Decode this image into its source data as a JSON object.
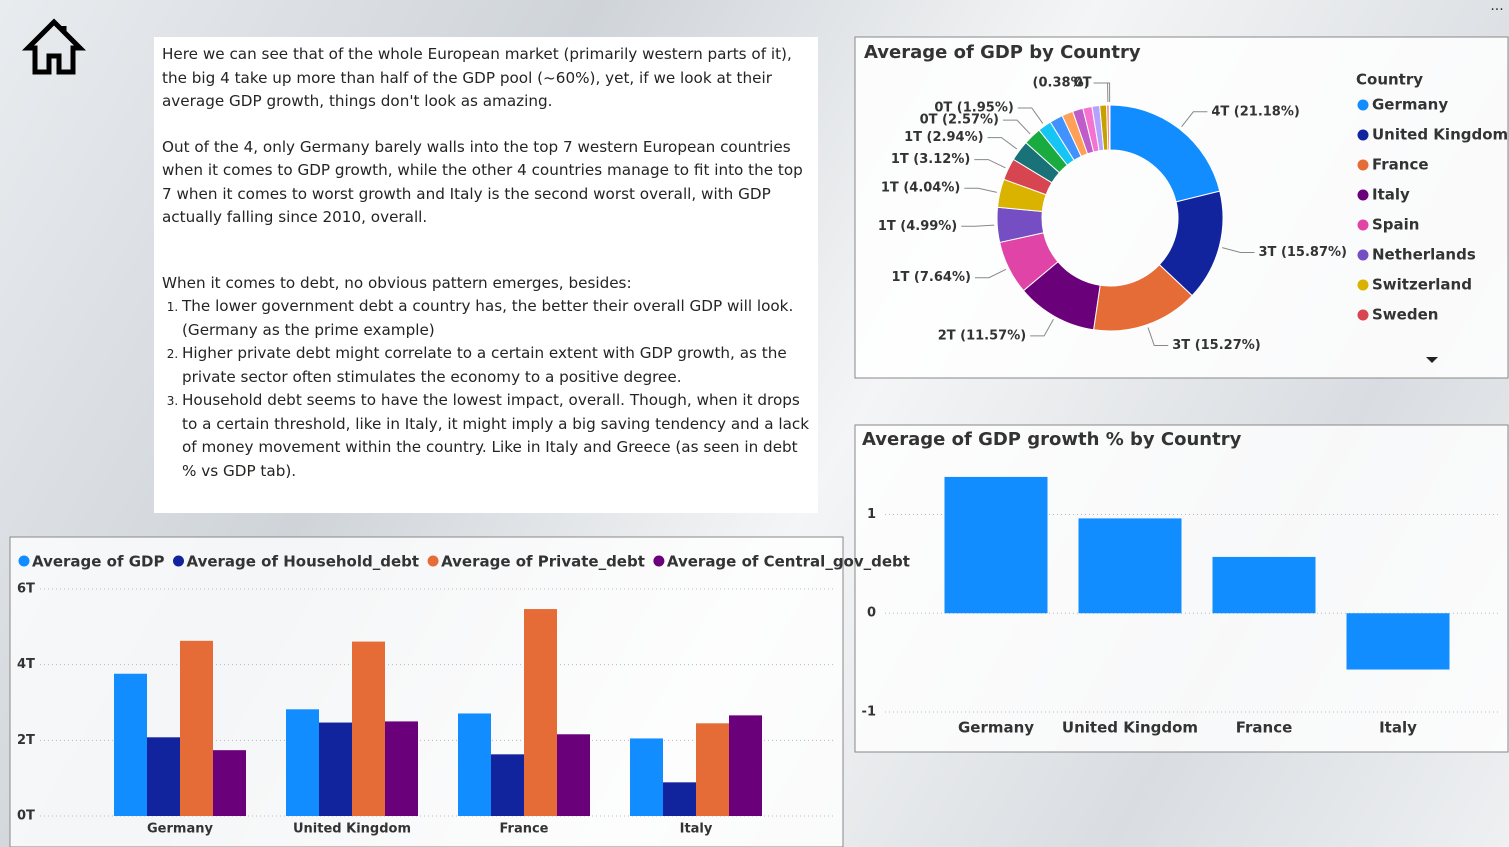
{
  "text_panel": {
    "paragraphs": [
      "Here we can see that of the whole European market (primarily western parts of it), the big 4 take up more than half of the GDP pool (~60%), yet, if we look at their average GDP growth, things don't look as amazing.",
      "Out of the 4, only Germany barely walls into the top 7 western European countries when it comes to GDP growth, while the other 4 countries manage to fit into the top 7 when it comes to worst growth and Italy is the second worst overall, with GDP actually falling since 2010, overall.",
      "When it comes to debt, no obvious pattern emerges, besides:"
    ],
    "list": [
      "The lower government debt a country has, the better their overall GDP will look. (Germany as the prime example)",
      "Higher private debt might correlate to a certain extent with GDP growth, as the private sector often stimulates the economy to a positive degree.",
      "Household debt seems to have the lowest impact, overall. Though, when it drops to a certain threshold, like in Italy, it might imply a big saving tendency and a lack of money movement within the country. Like in Italy and Greece (as seen in debt % vs GDP tab)."
    ]
  },
  "chart_data": [
    {
      "type": "donut",
      "title": "Average of GDP by Country",
      "legend_title": "Country",
      "categories": [
        "Germany",
        "United Kingdom",
        "France",
        "Italy",
        "Spain",
        "Netherlands",
        "Switzerland",
        "Sweden",
        null,
        null,
        null,
        null,
        null,
        null,
        null,
        null,
        null,
        null,
        null
      ],
      "values": [
        21.18,
        15.87,
        15.27,
        11.57,
        7.64,
        4.99,
        4.04,
        3.12,
        2.94,
        2.57,
        1.95,
        1.9,
        1.6,
        1.5,
        1.3,
        1.1,
        0.98,
        0.38,
        0.1
      ],
      "value_labels": [
        "4T (21.18%)",
        "3T (15.87%)",
        "3T (15.27%)",
        "2T (11.57%)",
        "1T (7.64%)",
        "1T (4.99%)",
        "1T (4.04%)",
        "1T (3.12%)",
        "1T (2.94%)",
        "0T (2.57%)",
        "0T (1.95%)",
        null,
        null,
        null,
        null,
        null,
        null,
        "(0.38%)",
        "0T"
      ],
      "colors": [
        "#118DFF",
        "#12239E",
        "#E66C37",
        "#6B007B",
        "#E044A7",
        "#744EC2",
        "#D9B300",
        "#D64550",
        "#197278",
        "#1AAB40",
        "#15C6F4",
        "#4092FF",
        "#FFA058",
        "#BE5DC9",
        "#F472D0",
        "#B5A1FF",
        "#C4A200",
        "#FF8080",
        "#00DBBC"
      ]
    },
    {
      "type": "bar",
      "title": "Average of GDP growth % by Country",
      "categories": [
        "Germany",
        "United Kingdom",
        "France",
        "Italy"
      ],
      "values": [
        1.38,
        0.96,
        0.57,
        -0.57
      ],
      "color": "#118DFF",
      "ylim": [
        -1,
        1.45
      ],
      "yticks": [
        -1,
        0,
        1
      ],
      "grid": true
    },
    {
      "type": "grouped_bar",
      "categories": [
        "Germany",
        "United Kingdom",
        "France",
        "Italy"
      ],
      "series": [
        {
          "name": "Average of GDP",
          "color": "#118DFF",
          "values": [
            3.76,
            2.82,
            2.71,
            2.05
          ]
        },
        {
          "name": "Average of Household_debt",
          "color": "#12239E",
          "values": [
            2.08,
            2.47,
            1.63,
            0.89
          ]
        },
        {
          "name": "Average of Private_debt",
          "color": "#E66C37",
          "values": [
            4.63,
            4.61,
            5.47,
            2.45
          ]
        },
        {
          "name": "Average of Central_gov_debt",
          "color": "#6B007B",
          "values": [
            1.74,
            2.5,
            2.16,
            2.66
          ]
        }
      ],
      "ylim": [
        0,
        6.1
      ],
      "yticks": [
        {
          "value": 0,
          "label": "0T"
        },
        {
          "value": 2,
          "label": "2T"
        },
        {
          "value": 4,
          "label": "4T"
        },
        {
          "value": 6,
          "label": "6T"
        }
      ],
      "grid": true
    }
  ]
}
